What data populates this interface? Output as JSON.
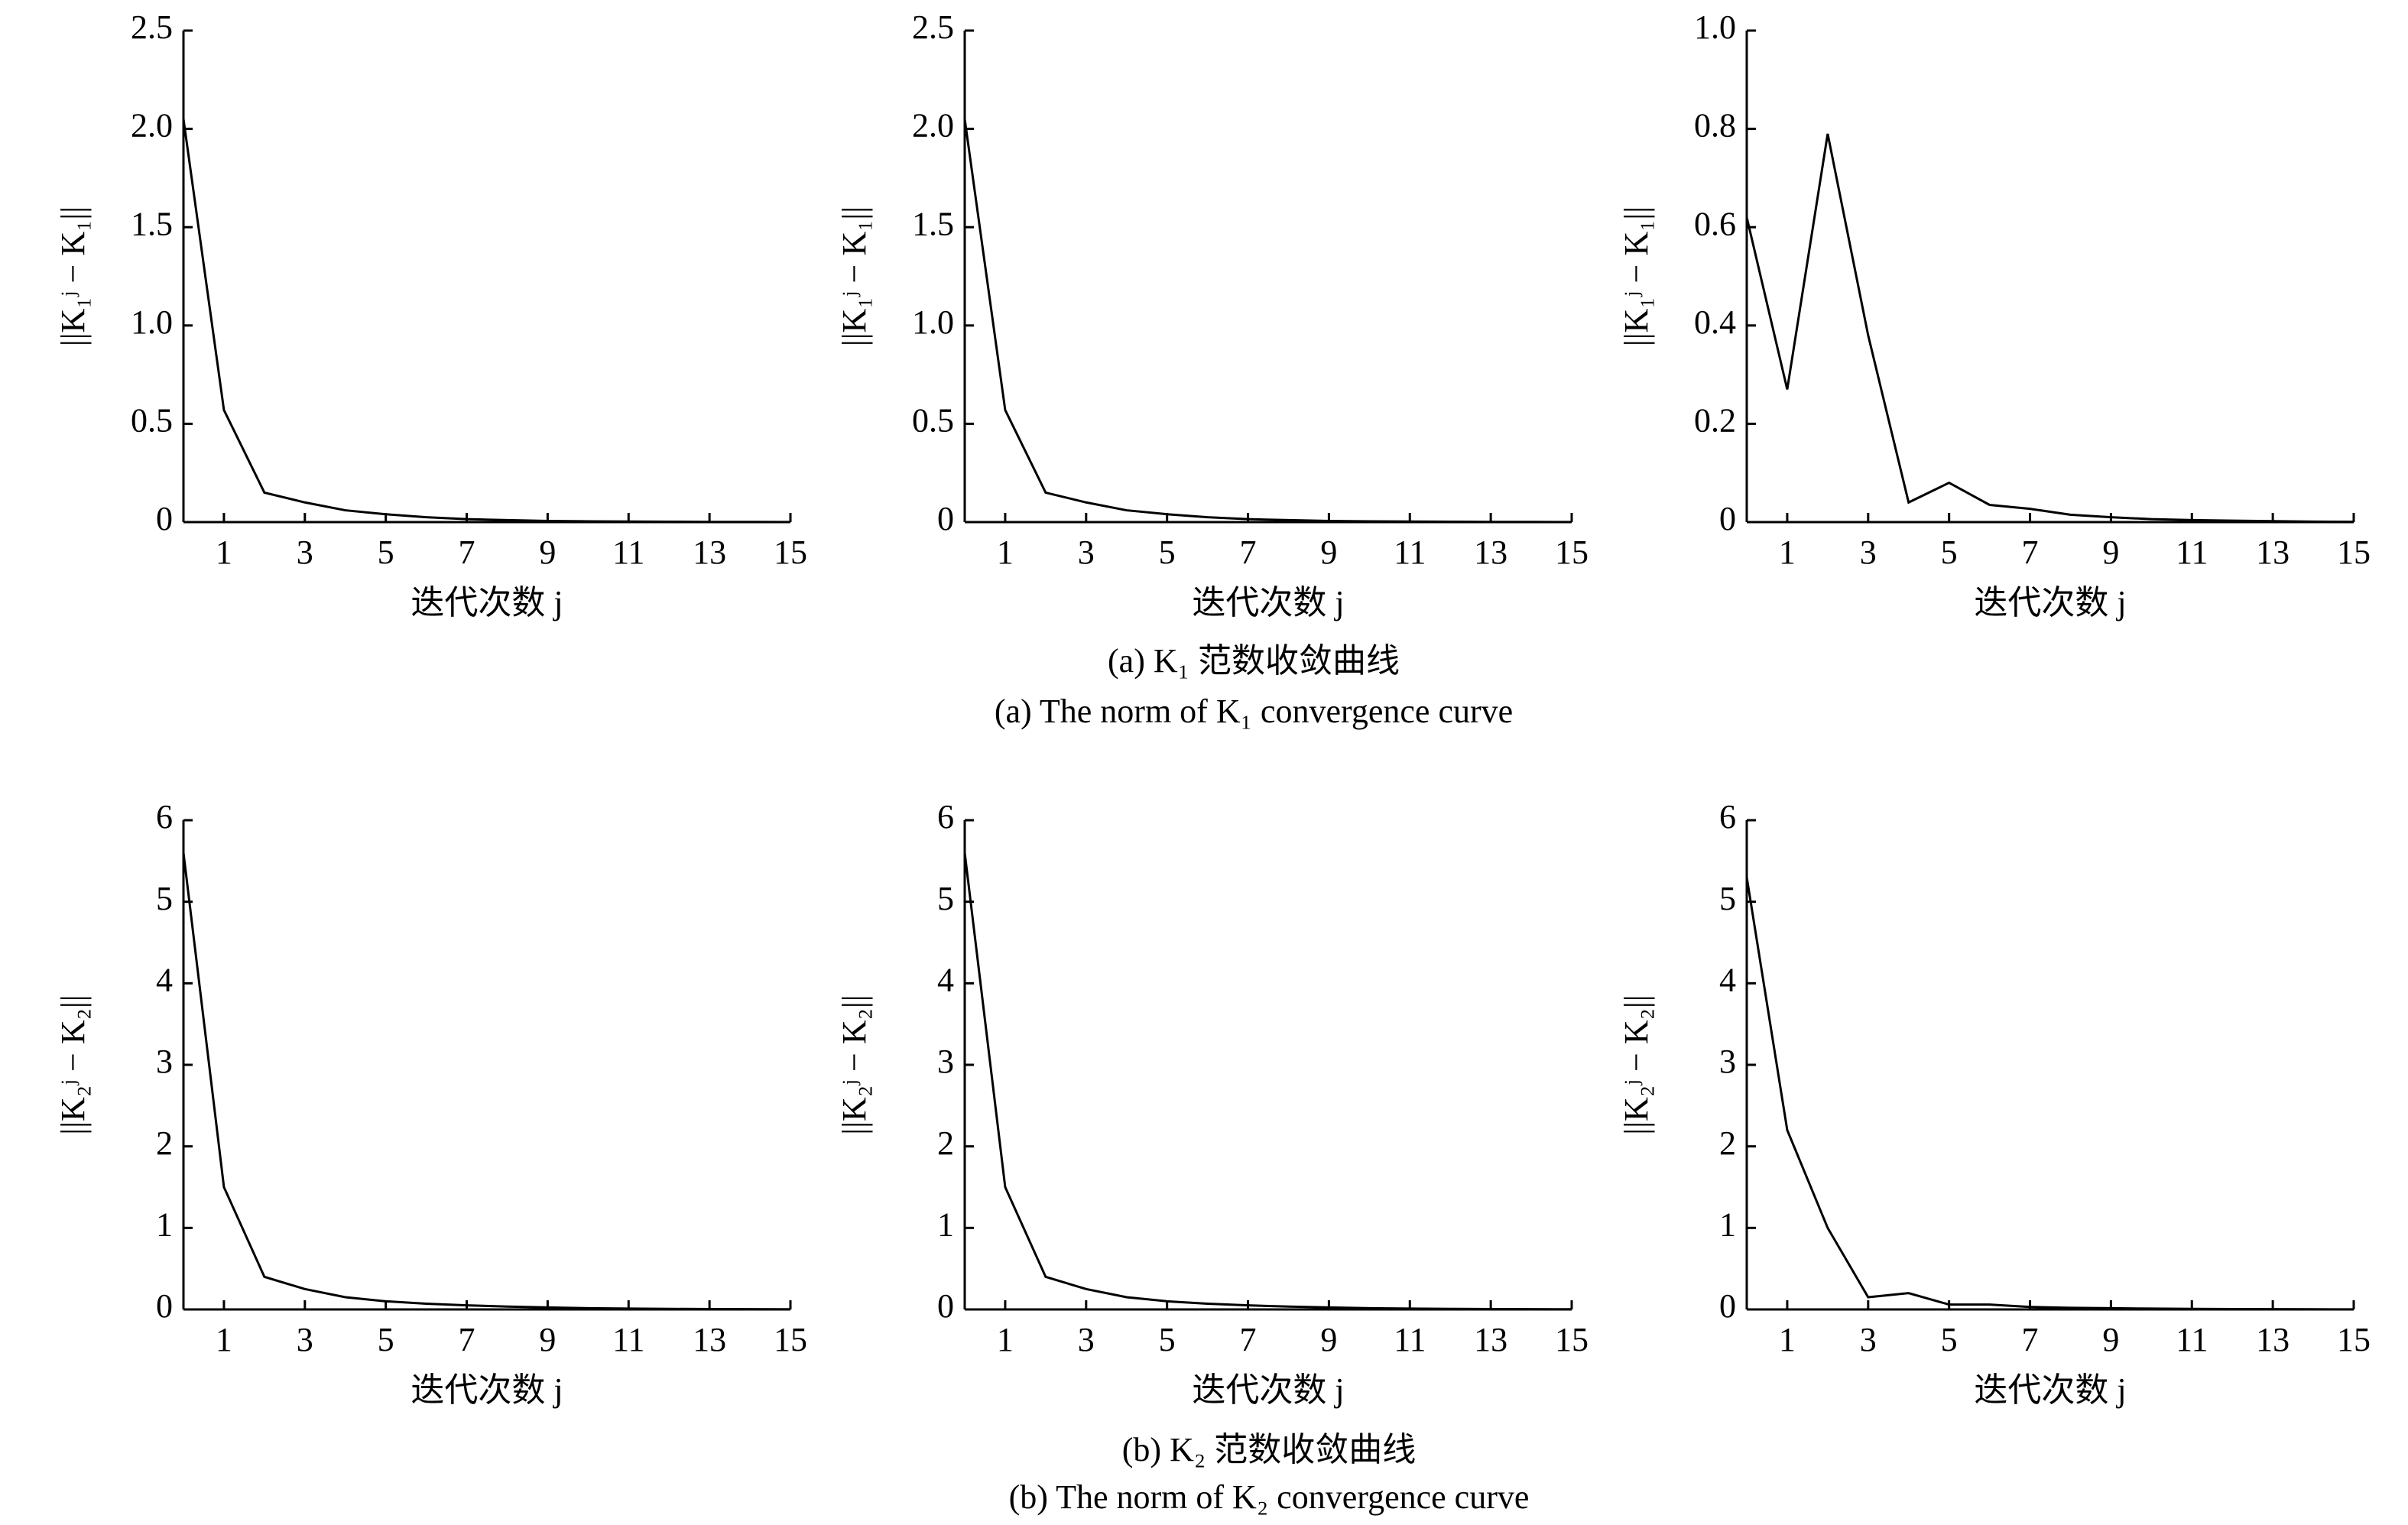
{
  "chart_data": [
    {
      "type": "line",
      "ylabel": "||K₁ʲ − K₁||",
      "xlabel": "迭代次数 j",
      "x": [
        0,
        1,
        2,
        3,
        4,
        5,
        6,
        7,
        8,
        9,
        10,
        11,
        12,
        13,
        14,
        15
      ],
      "series": [
        {
          "color": "#000000",
          "values": [
            2.05,
            0.57,
            0.15,
            0.1,
            0.06,
            0.04,
            0.025,
            0.015,
            0.01,
            0.006,
            0.004,
            0.003,
            0.002,
            0.001,
            0.001,
            0.0005
          ]
        }
      ],
      "xlim": [
        0,
        15
      ],
      "xticks": [
        1,
        3,
        5,
        7,
        9,
        11,
        13,
        15
      ],
      "ylim": [
        0,
        2.5
      ],
      "yticks": [
        0,
        0.5,
        {
          "value": 1,
          "label": "1.0"
        },
        1.5,
        {
          "value": 2,
          "label": "2.0"
        },
        2.5
      ]
    },
    {
      "type": "line",
      "ylabel": "||K₁ʲ − K₁||",
      "xlabel": "迭代次数 j",
      "x": [
        0,
        1,
        2,
        3,
        4,
        5,
        6,
        7,
        8,
        9,
        10,
        11,
        12,
        13,
        14,
        15
      ],
      "series": [
        {
          "color": "#000000",
          "values": [
            2.05,
            0.57,
            0.15,
            0.1,
            0.06,
            0.04,
            0.025,
            0.015,
            0.01,
            0.006,
            0.004,
            0.003,
            0.002,
            0.001,
            0.001,
            0.0005
          ]
        }
      ],
      "xlim": [
        0,
        15
      ],
      "xticks": [
        1,
        3,
        5,
        7,
        9,
        11,
        13,
        15
      ],
      "ylim": [
        0,
        2.5
      ],
      "yticks": [
        0,
        0.5,
        {
          "value": 1,
          "label": "1.0"
        },
        1.5,
        {
          "value": 2,
          "label": "2.0"
        },
        2.5
      ]
    },
    {
      "type": "line",
      "ylabel": "||K₁ʲ − K₁||",
      "xlabel": "迭代次数 j",
      "x": [
        0,
        1,
        2,
        3,
        4,
        5,
        6,
        7,
        8,
        9,
        10,
        11,
        12,
        13,
        14,
        15
      ],
      "series": [
        {
          "color": "#000000",
          "values": [
            0.62,
            0.27,
            0.79,
            0.38,
            0.04,
            0.08,
            0.035,
            0.027,
            0.015,
            0.01,
            0.006,
            0.004,
            0.003,
            0.002,
            0.001,
            0.0005
          ]
        }
      ],
      "xlim": [
        0,
        15
      ],
      "xticks": [
        1,
        3,
        5,
        7,
        9,
        11,
        13,
        15
      ],
      "ylim": [
        0,
        1
      ],
      "yticks": [
        0,
        0.2,
        0.4,
        0.6,
        0.8,
        {
          "value": 1,
          "label": "1.0"
        }
      ]
    },
    {
      "type": "line",
      "ylabel": "||K₂ʲ − K₂||",
      "xlabel": "迭代次数 j",
      "x": [
        0,
        1,
        2,
        3,
        4,
        5,
        6,
        7,
        8,
        9,
        10,
        11,
        12,
        13,
        14,
        15
      ],
      "series": [
        {
          "color": "#000000",
          "values": [
            5.6,
            1.5,
            0.4,
            0.25,
            0.15,
            0.1,
            0.07,
            0.05,
            0.035,
            0.025,
            0.015,
            0.01,
            0.007,
            0.005,
            0.003,
            0.002
          ]
        }
      ],
      "xlim": [
        0,
        15
      ],
      "xticks": [
        1,
        3,
        5,
        7,
        9,
        11,
        13,
        15
      ],
      "ylim": [
        0,
        6
      ],
      "yticks": [
        0,
        1,
        2,
        3,
        4,
        5,
        6
      ]
    },
    {
      "type": "line",
      "ylabel": "||K₂ʲ − K₂||",
      "xlabel": "迭代次数 j",
      "x": [
        0,
        1,
        2,
        3,
        4,
        5,
        6,
        7,
        8,
        9,
        10,
        11,
        12,
        13,
        14,
        15
      ],
      "series": [
        {
          "color": "#000000",
          "values": [
            5.6,
            1.5,
            0.4,
            0.25,
            0.15,
            0.1,
            0.07,
            0.05,
            0.035,
            0.025,
            0.015,
            0.01,
            0.007,
            0.005,
            0.003,
            0.002
          ]
        }
      ],
      "xlim": [
        0,
        15
      ],
      "xticks": [
        1,
        3,
        5,
        7,
        9,
        11,
        13,
        15
      ],
      "ylim": [
        0,
        6
      ],
      "yticks": [
        0,
        1,
        2,
        3,
        4,
        5,
        6
      ]
    },
    {
      "type": "line",
      "ylabel": "||K₂ʲ − K₂||",
      "xlabel": "迭代次数 j",
      "x": [
        0,
        1,
        2,
        3,
        4,
        5,
        6,
        7,
        8,
        9,
        10,
        11,
        12,
        13,
        14,
        15
      ],
      "series": [
        {
          "color": "#000000",
          "values": [
            5.3,
            2.2,
            1.0,
            0.15,
            0.2,
            0.06,
            0.06,
            0.03,
            0.02,
            0.015,
            0.01,
            0.007,
            0.005,
            0.003,
            0.002,
            0.001
          ]
        }
      ],
      "xlim": [
        0,
        15
      ],
      "xticks": [
        1,
        3,
        5,
        7,
        9,
        11,
        13,
        15
      ],
      "ylim": [
        0,
        6
      ],
      "yticks": [
        0,
        1,
        2,
        3,
        4,
        5,
        6
      ]
    }
  ],
  "captions": [
    {
      "zh": "(a) K₁ 范数收敛曲线",
      "en": "(a) The norm of K₁ convergence curve"
    },
    {
      "zh": "(b) K₂ 范数收敛曲线",
      "en": "(b) The norm of K₂ convergence curve"
    }
  ]
}
